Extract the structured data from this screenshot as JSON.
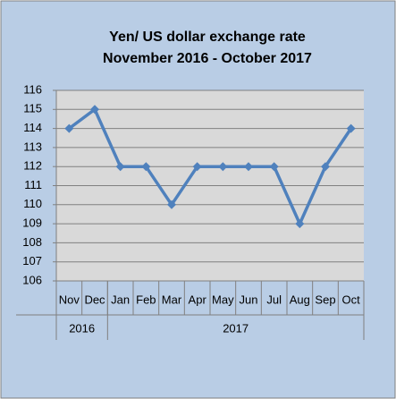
{
  "chart_data": {
    "type": "line",
    "title": "Yen/ US dollar exchange rate",
    "subtitle": "November 2016 - October 2017",
    "categories": [
      "Nov",
      "Dec",
      "Jan",
      "Feb",
      "Mar",
      "Apr",
      "May",
      "Jun",
      "Jul",
      "Aug",
      "Sep",
      "Oct"
    ],
    "groups": [
      {
        "label": "2016",
        "count": 2
      },
      {
        "label": "2017",
        "count": 10
      }
    ],
    "values": [
      114,
      115,
      112,
      112,
      110,
      112,
      112,
      112,
      112,
      109,
      112,
      114
    ],
    "color": "#4f81bd",
    "ylim": [
      106,
      116
    ],
    "yticks": [
      106,
      107,
      108,
      109,
      110,
      111,
      112,
      113,
      114,
      115,
      116
    ],
    "grid": true
  }
}
